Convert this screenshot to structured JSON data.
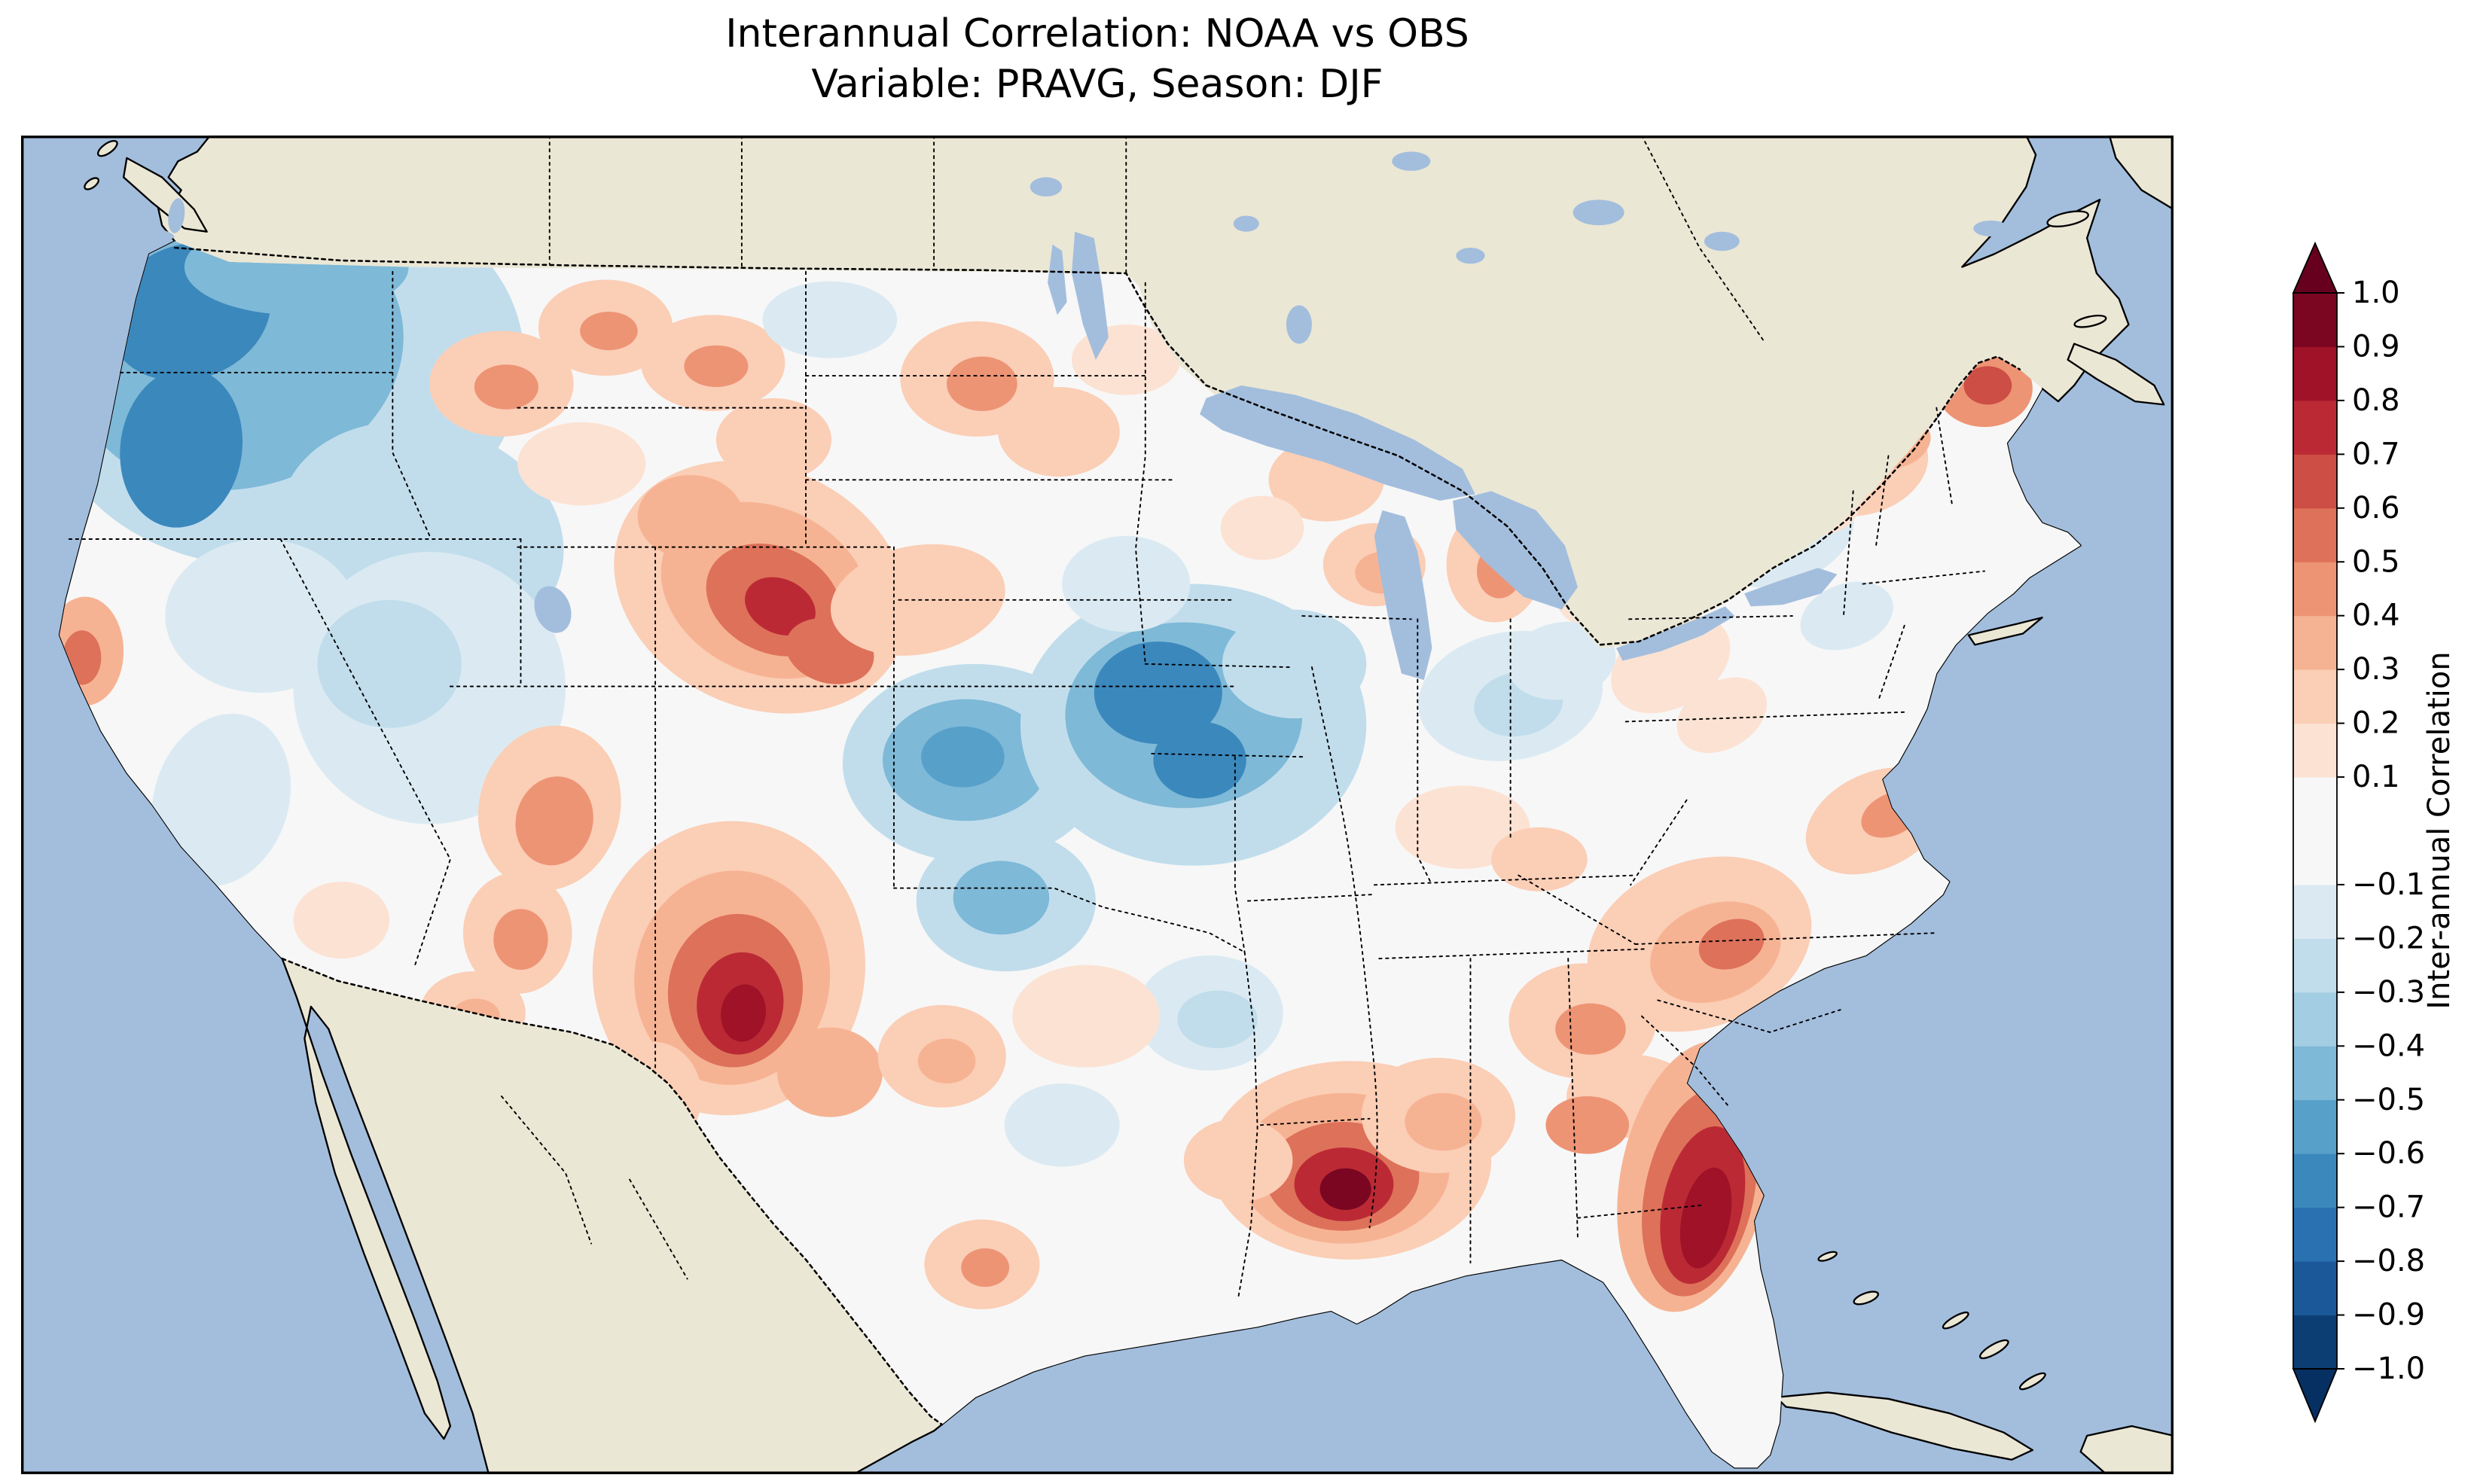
{
  "figure": {
    "title_line1": "Interannual Correlation: NOAA vs OBS",
    "title_line2": "Variable: PRAVG, Season: DJF"
  },
  "map": {
    "ocean_color": "#a3bedd",
    "land_color": "#ebe7d5",
    "field_base_color": "#f7f7f7",
    "boundaries": "dotted state and national borders, solid black coastlines"
  },
  "colorbar": {
    "label": "Inter-annual Correlation",
    "range": [
      -1.0,
      1.0
    ],
    "tick_values": [
      1.0,
      0.9,
      0.8,
      0.7,
      0.6,
      0.5,
      0.4,
      0.3,
      0.2,
      0.1,
      -0.1,
      -0.2,
      -0.3,
      -0.4,
      -0.5,
      -0.6,
      -0.7,
      -0.8,
      -0.9,
      -1.0
    ],
    "tick_labels": [
      "1.0",
      "0.9",
      "0.8",
      "0.7",
      "0.6",
      "0.5",
      "0.4",
      "0.3",
      "0.2",
      "0.1",
      "−0.1",
      "−0.2",
      "−0.3",
      "−0.4",
      "−0.5",
      "−0.6",
      "−0.7",
      "−0.8",
      "−0.9",
      "−1.0"
    ],
    "bins": [
      {
        "from": -1.0,
        "to": -0.9,
        "color": "#0c3e74"
      },
      {
        "from": -0.9,
        "to": -0.8,
        "color": "#1a5899"
      },
      {
        "from": -0.8,
        "to": -0.7,
        "color": "#2a71b2"
      },
      {
        "from": -0.7,
        "to": -0.6,
        "color": "#3b88bd"
      },
      {
        "from": -0.6,
        "to": -0.5,
        "color": "#57a0ca"
      },
      {
        "from": -0.5,
        "to": -0.4,
        "color": "#7eb9d7"
      },
      {
        "from": -0.4,
        "to": -0.3,
        "color": "#a2cde3"
      },
      {
        "from": -0.3,
        "to": -0.2,
        "color": "#c1ddec"
      },
      {
        "from": -0.2,
        "to": -0.1,
        "color": "#dbeaf2"
      },
      {
        "from": -0.1,
        "to": 0.1,
        "color": "#f7f7f7"
      },
      {
        "from": 0.1,
        "to": 0.2,
        "color": "#fce2d3"
      },
      {
        "from": 0.2,
        "to": 0.3,
        "color": "#fbceb6"
      },
      {
        "from": 0.3,
        "to": 0.4,
        "color": "#f6b393"
      },
      {
        "from": 0.4,
        "to": 0.5,
        "color": "#ed9475"
      },
      {
        "from": 0.5,
        "to": 0.6,
        "color": "#de715a"
      },
      {
        "from": 0.6,
        "to": 0.7,
        "color": "#cd4e45"
      },
      {
        "from": 0.7,
        "to": 0.8,
        "color": "#bb2a34"
      },
      {
        "from": 0.8,
        "to": 0.9,
        "color": "#9f1228"
      },
      {
        "from": 0.9,
        "to": 1.0,
        "color": "#7a0622"
      }
    ],
    "extend_over_color": "#67001f",
    "extend_under_color": "#053061"
  },
  "chart_data": {
    "type": "heatmap",
    "title": "Interannual Correlation: NOAA vs OBS",
    "subtitle": "Variable: PRAVG, Season: DJF",
    "variable": "PRAVG",
    "season": "DJF",
    "comparison": [
      "NOAA",
      "OBS"
    ],
    "geography": "Contiguous United States (filled-contour map, surrounding Canada/Mexico/ocean masked)",
    "colormap": "RdBu_r diverging (blue negative, red positive)",
    "colorbar_label": "Inter-annual Correlation",
    "levels": [
      -1.0,
      -0.9,
      -0.8,
      -0.7,
      -0.6,
      -0.5,
      -0.4,
      -0.3,
      -0.2,
      -0.1,
      0.1,
      0.2,
      0.3,
      0.4,
      0.5,
      0.6,
      0.7,
      0.8,
      0.9,
      1.0
    ],
    "region_estimates": [
      {
        "region": "Pacific Northwest (WA/OR/N Idaho)",
        "correlation": -0.6
      },
      {
        "region": "Northern California coast (Cape Mendocino)",
        "correlation": 0.5
      },
      {
        "region": "Central California valley",
        "correlation": -0.2
      },
      {
        "region": "Great Basin / Nevada",
        "correlation": -0.2
      },
      {
        "region": "Montana (scattered patches)",
        "correlation": 0.4
      },
      {
        "region": "Wyoming / Colorado Front Range",
        "correlation": 0.7
      },
      {
        "region": "Nebraska panhandle",
        "correlation": 0.4
      },
      {
        "region": "North Dakota / NW Minnesota",
        "correlation": 0.4
      },
      {
        "region": "Central Kansas / Oklahoma",
        "correlation": -0.5
      },
      {
        "region": "Upper Midwest (Iowa/Missouri/Illinois)",
        "correlation": -0.6
      },
      {
        "region": "Four Corners / S Utah / N Arizona",
        "correlation": 0.5
      },
      {
        "region": "New Mexico / S Colorado core",
        "correlation": 0.8
      },
      {
        "region": "Southern Arizona",
        "correlation": 0.3
      },
      {
        "region": "West Texas",
        "correlation": 0.3
      },
      {
        "region": "South Texas",
        "correlation": 0.4
      },
      {
        "region": "Arkansas / N Louisiana",
        "correlation": -0.3
      },
      {
        "region": "Gulf Coast Louisiana / Mississippi delta",
        "correlation": 0.9
      },
      {
        "region": "Florida peninsula",
        "correlation": 0.9
      },
      {
        "region": "Georgia / Carolinas",
        "correlation": 0.5
      },
      {
        "region": "Tennessee valley",
        "correlation": 0.2
      },
      {
        "region": "Ohio valley",
        "correlation": -0.2
      },
      {
        "region": "Wisconsin / Michigan",
        "correlation": 0.4
      },
      {
        "region": "Interior Northeast (PA/NY)",
        "correlation": -0.2
      },
      {
        "region": "New England",
        "correlation": 0.3
      },
      {
        "region": "Northern Maine",
        "correlation": 0.6
      }
    ]
  }
}
